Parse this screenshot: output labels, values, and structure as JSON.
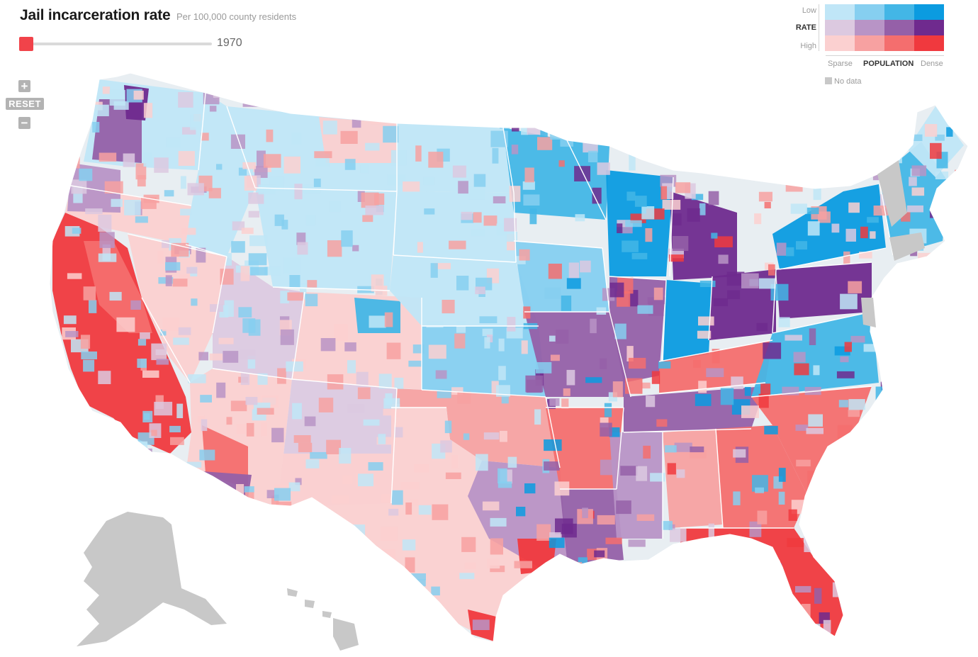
{
  "header": {
    "title": "Jail incarceration rate",
    "subtitle": "Per 100,000 county residents"
  },
  "slider": {
    "year": "1970",
    "handle_color": "#f1434a"
  },
  "zoom": {
    "zoom_in_label": "+",
    "reset_label": "RESET",
    "zoom_out_label": "−"
  },
  "legend": {
    "rate_low": "Low",
    "rate_title": "RATE",
    "rate_high": "High",
    "pop_sparse": "Sparse",
    "pop_title": "POPULATION",
    "pop_dense": "Dense",
    "no_data": "No data",
    "no_data_color": "#c8c8c8",
    "colors": [
      [
        "#c0e6f7",
        "#86cff0",
        "#43b6e6",
        "#0b9be0"
      ],
      [
        "#dcc9e0",
        "#b894c6",
        "#9560a8",
        "#6f2a8e"
      ],
      [
        "#fbd0d0",
        "#f7a1a1",
        "#f46e6e",
        "#f0393e"
      ]
    ]
  },
  "map": {
    "land_color": "#e8eef2",
    "border_color": "#ffffff",
    "territory_color": "#c8c8c8"
  }
}
